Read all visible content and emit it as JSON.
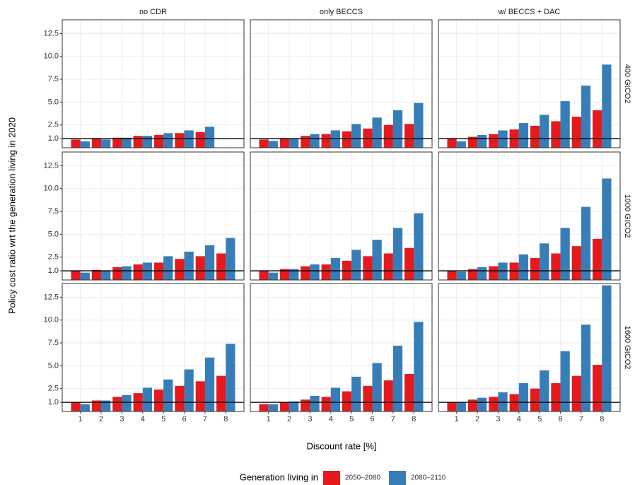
{
  "chart_data": {
    "type": "bar",
    "y_label": "Policy cost ratio wrt the generation living in 2020",
    "x_label": "Discount rate [%]",
    "legend_title": "Generation living in",
    "columns": [
      "no CDR",
      "only BECCS",
      "w/ BECCS + DAC"
    ],
    "rows": [
      "400 GtCO2",
      "1000 GtCO2",
      "1600 GtCO2"
    ],
    "categories": [
      "1",
      "2",
      "3",
      "4",
      "5",
      "6",
      "7",
      "8"
    ],
    "series": [
      {
        "name": "2050–2080",
        "color": "#e41a1c"
      },
      {
        "name": "2080–2110",
        "color": "#377eb8"
      }
    ],
    "ylim": [
      0,
      14
    ],
    "yticks": [
      {
        "value": 1,
        "label": "1.0"
      },
      2.5,
      {
        "value": 5,
        "label": "5.0"
      },
      7.5,
      {
        "value": 10,
        "label": "10.0"
      },
      12.5
    ],
    "hline": 1,
    "grid": true,
    "panels": [
      [
        [
          [
            0.9,
            1.05,
            1.1,
            1.3,
            1.4,
            1.6,
            1.7,
            null
          ],
          [
            0.7,
            0.9,
            1.1,
            1.3,
            1.6,
            1.9,
            2.3,
            null
          ]
        ],
        [
          [
            0.9,
            1.05,
            1.3,
            1.5,
            1.8,
            2.1,
            2.5,
            2.6
          ],
          [
            0.75,
            1.0,
            1.5,
            1.9,
            2.6,
            3.3,
            4.1,
            4.9
          ]
        ],
        [
          [
            1.0,
            1.2,
            1.5,
            2.0,
            2.4,
            2.9,
            3.4,
            4.1
          ],
          [
            0.7,
            1.4,
            1.9,
            2.7,
            3.6,
            5.1,
            6.8,
            9.1
          ]
        ]
      ],
      [
        [
          [
            1.0,
            1.1,
            1.4,
            1.7,
            1.9,
            2.3,
            2.6,
            2.9
          ],
          [
            0.8,
            1.05,
            1.5,
            1.9,
            2.6,
            3.1,
            3.8,
            4.6
          ]
        ],
        [
          [
            1.0,
            1.2,
            1.5,
            1.7,
            2.1,
            2.6,
            2.9,
            3.5
          ],
          [
            0.8,
            1.2,
            1.7,
            2.4,
            3.3,
            4.4,
            5.7,
            7.3
          ]
        ],
        [
          [
            1.0,
            1.2,
            1.5,
            1.9,
            2.4,
            2.9,
            3.7,
            4.5
          ],
          [
            0.9,
            1.4,
            1.9,
            2.8,
            4.0,
            5.7,
            8.0,
            11.1
          ]
        ]
      ],
      [
        [
          [
            1.0,
            1.2,
            1.6,
            2.0,
            2.4,
            2.8,
            3.3,
            3.9
          ],
          [
            0.8,
            1.2,
            1.8,
            2.6,
            3.5,
            4.6,
            5.9,
            7.4
          ]
        ],
        [
          [
            0.8,
            1.0,
            1.3,
            1.6,
            2.2,
            2.8,
            3.4,
            4.1
          ],
          [
            0.8,
            1.1,
            1.7,
            2.6,
            3.8,
            5.3,
            7.2,
            9.8
          ]
        ],
        [
          [
            1.0,
            1.3,
            1.6,
            1.9,
            2.5,
            3.1,
            3.9,
            5.1
          ],
          [
            1.0,
            1.5,
            2.1,
            3.1,
            4.5,
            6.6,
            9.5,
            13.8
          ]
        ]
      ]
    ]
  }
}
